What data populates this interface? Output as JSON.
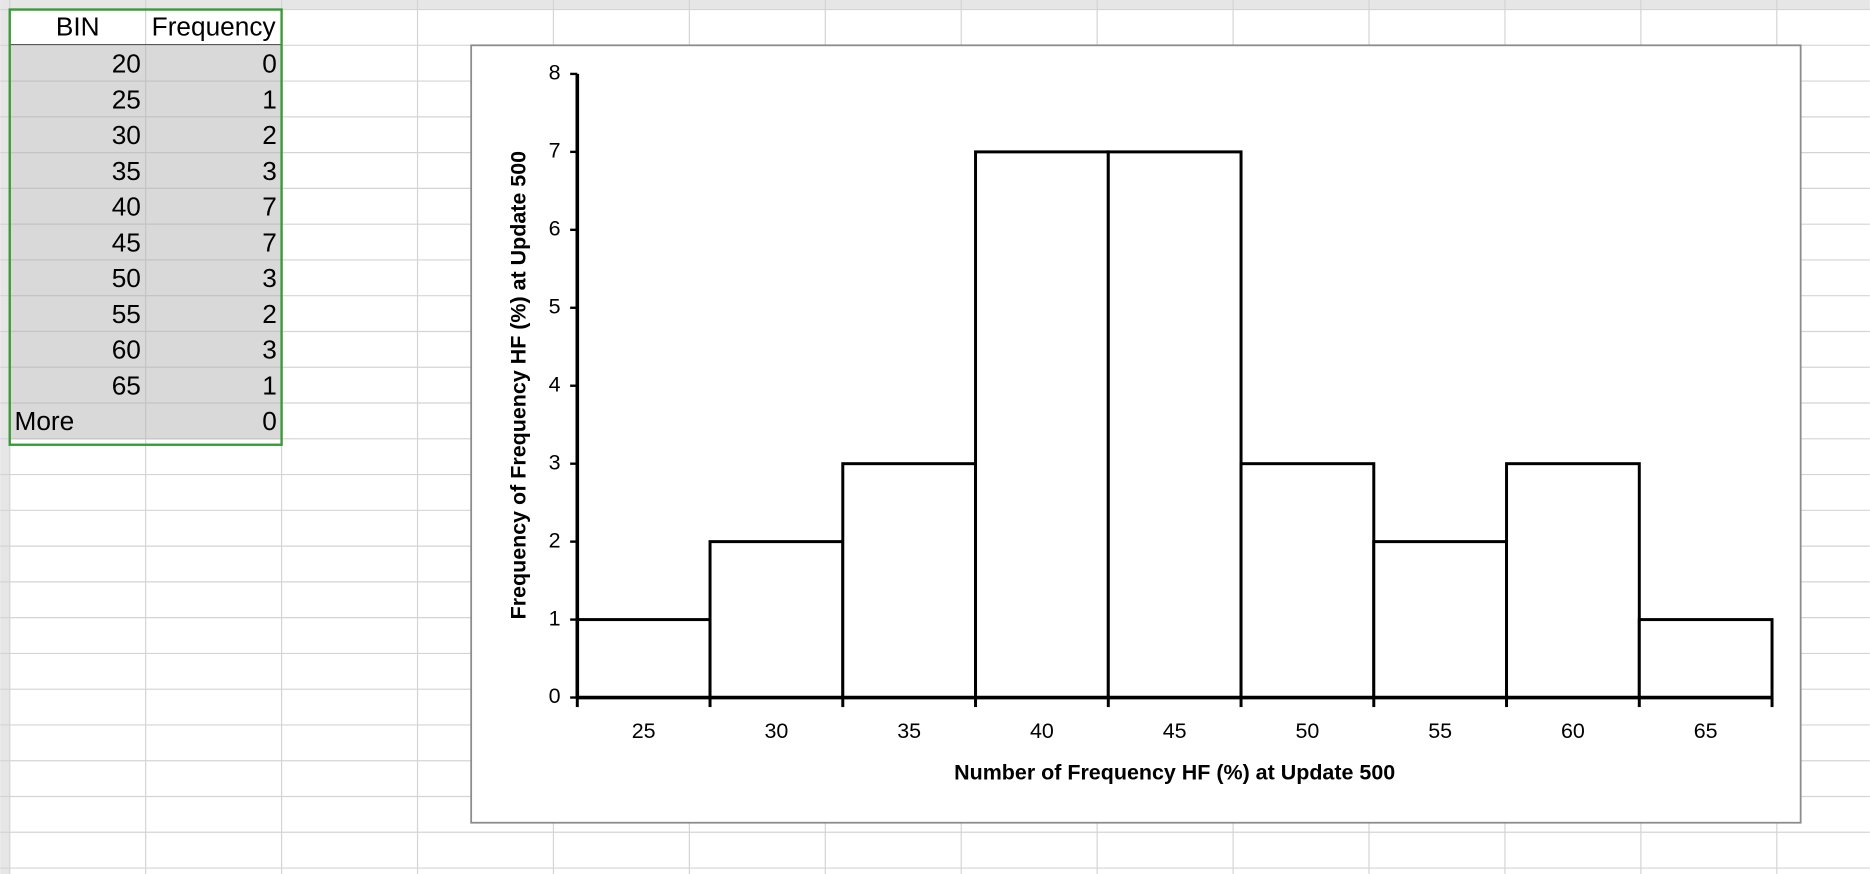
{
  "table": {
    "header": [
      "BIN",
      "Frequency"
    ],
    "rows": [
      [
        20,
        0
      ],
      [
        25,
        1
      ],
      [
        30,
        2
      ],
      [
        35,
        3
      ],
      [
        40,
        7
      ],
      [
        45,
        7
      ],
      [
        50,
        3
      ],
      [
        55,
        2
      ],
      [
        60,
        3
      ],
      [
        65,
        1
      ],
      [
        "More",
        0
      ]
    ]
  },
  "chart_data": {
    "type": "bar",
    "x_label": "Number of Frequency HF (%) at Update 500",
    "y_label": "Frequency of Frequency HF (%) at Update 500",
    "categories": [
      "25",
      "30",
      "35",
      "40",
      "45",
      "50",
      "55",
      "60",
      "65"
    ],
    "values": [
      1,
      2,
      3,
      7,
      7,
      3,
      2,
      3,
      1
    ],
    "color": "#ffffff",
    "ylim": [
      0,
      8
    ],
    "yticks": [
      0,
      1,
      2,
      3,
      4,
      5,
      6,
      7,
      8
    ]
  }
}
